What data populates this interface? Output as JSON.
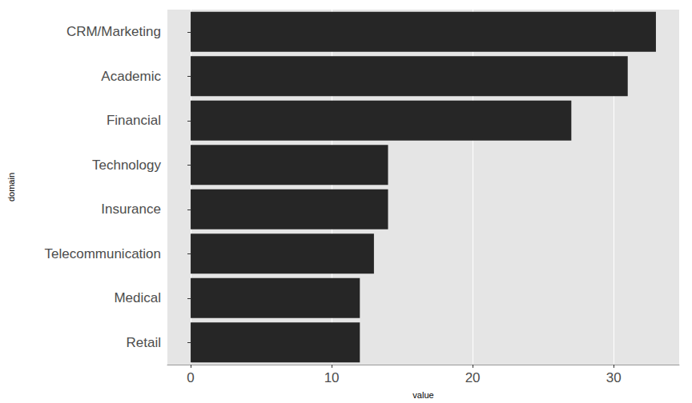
{
  "chart_data": {
    "type": "bar",
    "orientation": "horizontal",
    "categories": [
      "CRM/Marketing",
      "Academic",
      "Financial",
      "Technology",
      "Insurance",
      "Telecommunication",
      "Medical",
      "Retail"
    ],
    "values": [
      33,
      31,
      27,
      14,
      14,
      13,
      12,
      12
    ],
    "color": "#262626",
    "x_label": "value",
    "y_label": "domain",
    "xlim": [
      -1.65,
      34.65
    ],
    "xticks": [
      0,
      10,
      20,
      30
    ],
    "grid": true
  }
}
